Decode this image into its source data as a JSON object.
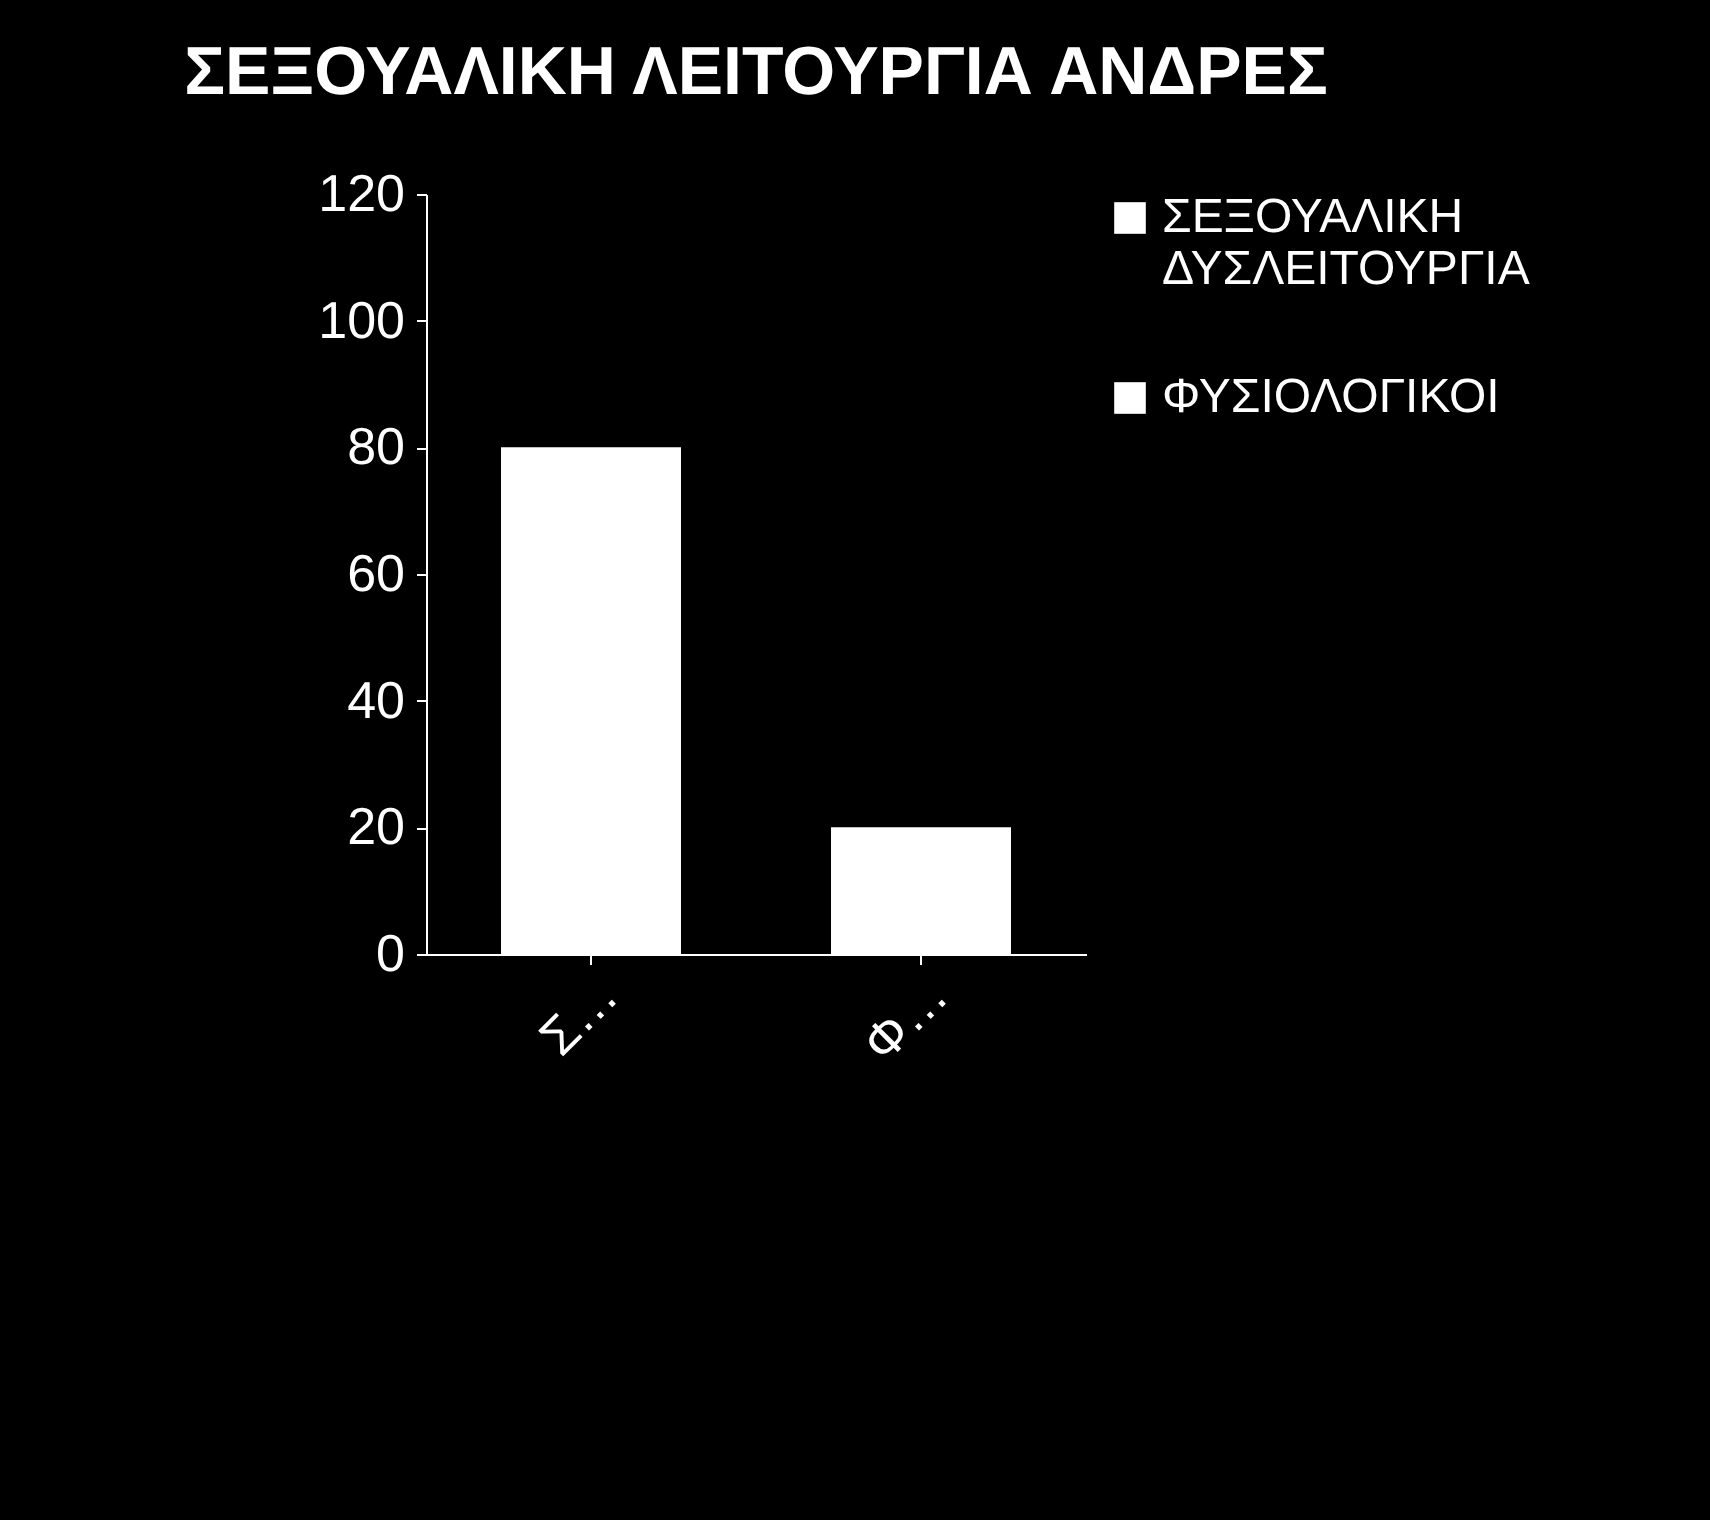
{
  "chart_data": {
    "type": "bar",
    "title": "ΣΕΞΟΥΑΛΙΚΗ ΛΕΙΤΟΥΡΓΙΑ\nΑΝΔΡΕΣ",
    "categories": [
      "Σ…",
      "Φ…"
    ],
    "series": [
      {
        "name": "ΣΕΞΟΥΑΛΙΚΗ ΔΥΣΛΕΙΤΟΥΡΓΙΑ",
        "color": "#ffffff",
        "values": [
          80,
          null
        ]
      },
      {
        "name": "ΦΥΣΙΟΛΟΓΙΚΟΙ",
        "color": "#ffffff",
        "values": [
          null,
          20
        ]
      }
    ],
    "ylim": [
      0,
      120
    ],
    "yticks": [
      0,
      20,
      40,
      60,
      80,
      100,
      120
    ],
    "grid": false,
    "legend": "right"
  }
}
